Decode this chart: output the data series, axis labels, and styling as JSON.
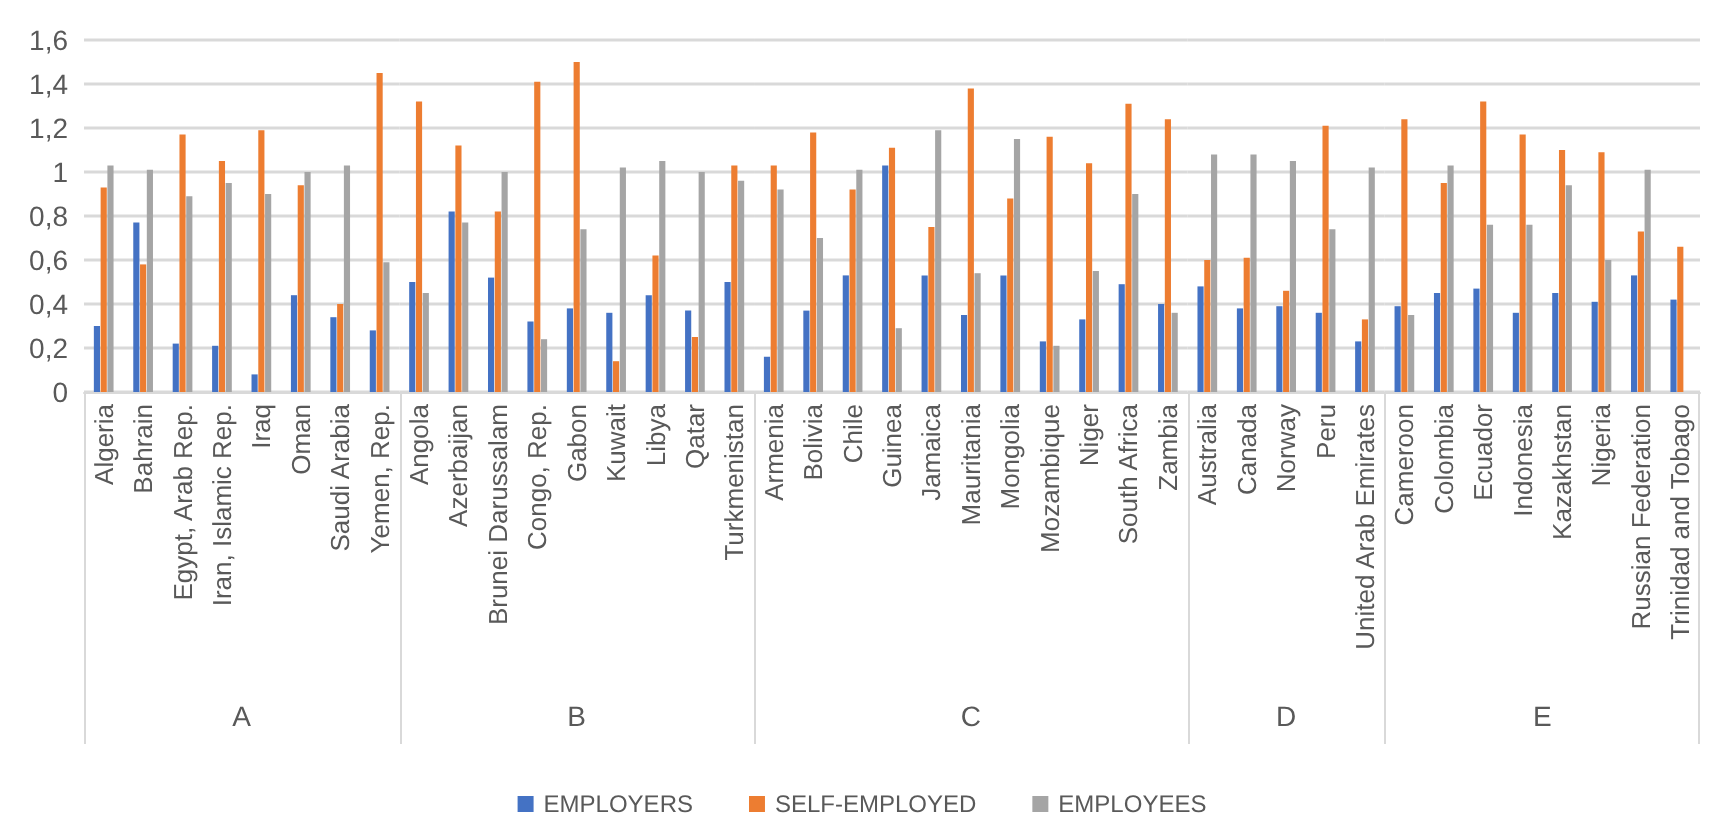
{
  "chart_data": [
    {
      "type": "bar",
      "xlabel": "A",
      "categories": [
        "Algeria",
        "Bahrain",
        "Egypt, Arab Rep.",
        "Iran, Islamic Rep.",
        "Iraq",
        "Oman",
        "Saudi Arabia",
        "Yemen, Rep."
      ],
      "series": [
        {
          "color": "#4472c4",
          "values": [
            0.3,
            0.77,
            0.22,
            0.21,
            0.08,
            0.44,
            0.34,
            0.28
          ]
        },
        {
          "color": "#ed7d31",
          "values": [
            0.93,
            0.58,
            1.17,
            1.05,
            1.19,
            0.94,
            0.4,
            1.45
          ]
        },
        {
          "color": "#a5a5a5",
          "values": [
            1.03,
            1.01,
            0.89,
            0.95,
            0.9,
            1.0,
            1.03,
            0.59
          ]
        }
      ],
      "ylim": [
        0,
        1.6
      ],
      "yticks": [
        0,
        {
          "value": 0.2,
          "label": "0,2"
        },
        {
          "value": 0.4,
          "label": "0,4"
        },
        {
          "value": 0.6,
          "label": "0,6"
        },
        {
          "value": 0.8,
          "label": "0,8"
        },
        1,
        {
          "value": 1.2,
          "label": "1,2"
        },
        {
          "value": 1.4,
          "label": "1,4"
        },
        {
          "value": 1.6,
          "label": "1,6"
        }
      ],
      "grid": "y"
    },
    {
      "type": "bar",
      "xlabel": "B",
      "categories": [
        "Angola",
        "Azerbaijan",
        "Brunei Darussalam",
        "Congo, Rep.",
        "Gabon",
        "Kuwait",
        "Libya",
        "Qatar",
        "Turkmenistan"
      ],
      "series": [
        {
          "color": "#4472c4",
          "values": [
            0.5,
            0.82,
            0.52,
            0.32,
            0.38,
            0.36,
            0.44,
            0.37,
            0.5
          ]
        },
        {
          "color": "#ed7d31",
          "values": [
            1.32,
            1.12,
            0.82,
            1.41,
            1.5,
            0.14,
            0.62,
            0.25,
            1.03
          ]
        },
        {
          "color": "#a5a5a5",
          "values": [
            0.45,
            0.77,
            1.0,
            0.24,
            0.74,
            1.02,
            1.05,
            1.0,
            0.96
          ]
        }
      ],
      "ylim": [
        0,
        1.6
      ],
      "yticks": [
        0,
        0.2,
        0.4,
        0.6,
        0.8,
        1,
        1.2,
        1.4,
        1.6
      ],
      "grid": "y",
      "tick_labels": "x"
    },
    {
      "type": "bar",
      "xlabel": "C",
      "categories": [
        "Armenia",
        "Bolivia",
        "Chile",
        "Guinea",
        "Jamaica",
        "Mauritania",
        "Mongolia",
        "Mozambique",
        "Niger",
        "South Africa",
        "Zambia"
      ],
      "series": [
        {
          "name": "EMPLOYERS",
          "color": "#4472c4",
          "values": [
            0.16,
            0.37,
            0.53,
            1.03,
            0.53,
            0.35,
            0.53,
            0.23,
            0.33,
            0.49,
            0.4
          ]
        },
        {
          "name": "SELF-EMPLOYED",
          "color": "#ed7d31",
          "values": [
            1.03,
            1.18,
            0.92,
            1.11,
            0.75,
            1.38,
            0.88,
            1.16,
            1.04,
            1.31,
            1.24
          ]
        },
        {
          "name": "EMPLOYEES",
          "color": "#a5a5a5",
          "values": [
            0.92,
            0.7,
            1.01,
            0.29,
            1.19,
            0.54,
            1.15,
            0.21,
            0.55,
            0.9,
            0.36
          ]
        }
      ],
      "ylim": [
        0,
        1.6
      ],
      "yticks": [
        0,
        0.2,
        0.4,
        0.6,
        0.8,
        1,
        1.2,
        1.4,
        1.6
      ],
      "grid": "y",
      "tick_labels": "x",
      "legend": "bottom"
    },
    {
      "type": "bar",
      "xlabel": "D",
      "categories": [
        "Australia",
        "Canada",
        "Norway",
        "Peru",
        "United Arab Emirates"
      ],
      "series": [
        {
          "color": "#4472c4",
          "values": [
            0.48,
            0.38,
            0.39,
            0.36,
            0.23
          ]
        },
        {
          "color": "#ed7d31",
          "values": [
            0.6,
            0.61,
            0.46,
            1.21,
            0.33
          ]
        },
        {
          "color": "#a5a5a5",
          "values": [
            1.08,
            1.08,
            1.05,
            0.74,
            1.02
          ]
        }
      ],
      "ylim": [
        0,
        1.6
      ],
      "yticks": [
        0,
        0.2,
        0.4,
        0.6,
        0.8,
        1,
        1.2,
        1.4,
        1.6
      ],
      "grid": "y",
      "tick_labels": "x"
    },
    {
      "type": "bar",
      "xlabel": "E",
      "categories": [
        "Cameroon",
        "Colombia",
        "Ecuador",
        "Indonesia",
        "Kazakhstan",
        "Nigeria",
        "Russian Federation",
        "Trinidad and Tobago"
      ],
      "series": [
        {
          "color": "#4472c4",
          "values": [
            0.39,
            0.45,
            0.47,
            0.36,
            0.45,
            0.41,
            0.53,
            0.42
          ]
        },
        {
          "color": "#ed7d31",
          "values": [
            1.24,
            0.95,
            1.32,
            1.17,
            1.1,
            1.09,
            0.73,
            0.66
          ]
        },
        {
          "color": "#a5a5a5",
          "values": [
            0.35,
            1.03,
            0.76,
            0.76,
            0.94,
            0.6,
            1.01,
            null
          ]
        }
      ],
      "ylim": [
        0,
        1.6
      ],
      "yticks": [
        0,
        0.2,
        0.4,
        0.6,
        0.8,
        1,
        1.2,
        1.4,
        1.6
      ],
      "grid": "y",
      "tick_labels": "x"
    }
  ]
}
